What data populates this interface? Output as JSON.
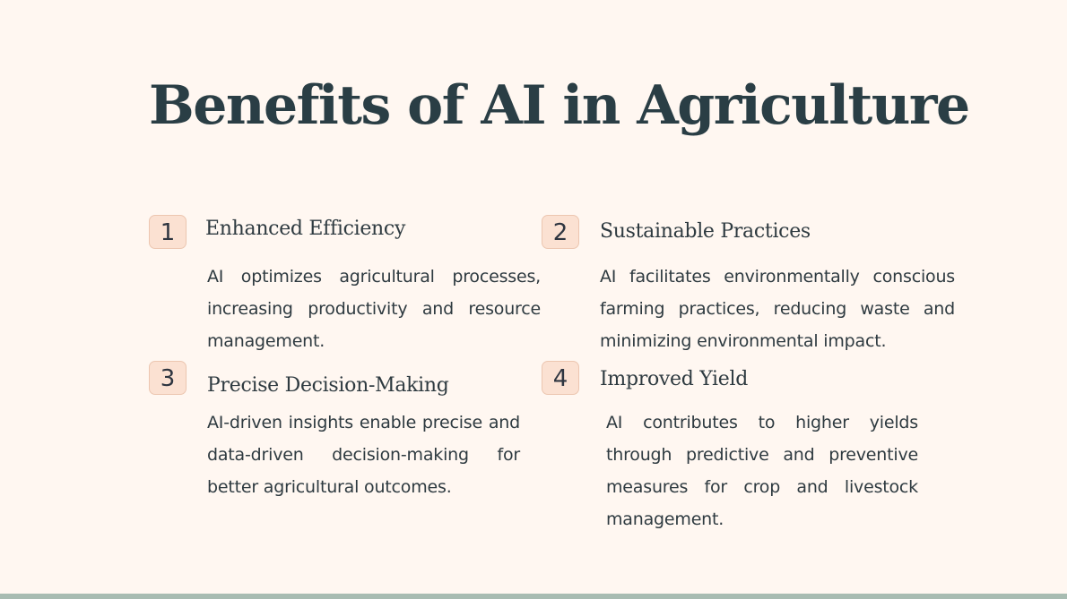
{
  "slide": {
    "title": "Benefits of AI in Agriculture"
  },
  "items": [
    {
      "number": "1",
      "heading": "Enhanced Efficiency",
      "text": "AI optimizes agricultural processes, increasing productivity and resource management."
    },
    {
      "number": "2",
      "heading": "Sustainable Practices",
      "text": "AI facilitates environmentally conscious farming practices, reducing waste and minimizing environmental impact."
    },
    {
      "number": "3",
      "heading": "Precise Decision-Making",
      "text": "AI-driven insights enable precise and data-driven decision-making for better agricultural outcomes."
    },
    {
      "number": "4",
      "heading": "Improved Yield",
      "text": "AI contributes to higher yields through predictive and preventive measures for crop and livestock management."
    }
  ],
  "colors": {
    "background": "#fff7f1",
    "title": "#2a3e45",
    "badge_fill": "#fbe1d2",
    "badge_border": "#ecc6b0",
    "bottom_bar": "#a8bcb2"
  }
}
